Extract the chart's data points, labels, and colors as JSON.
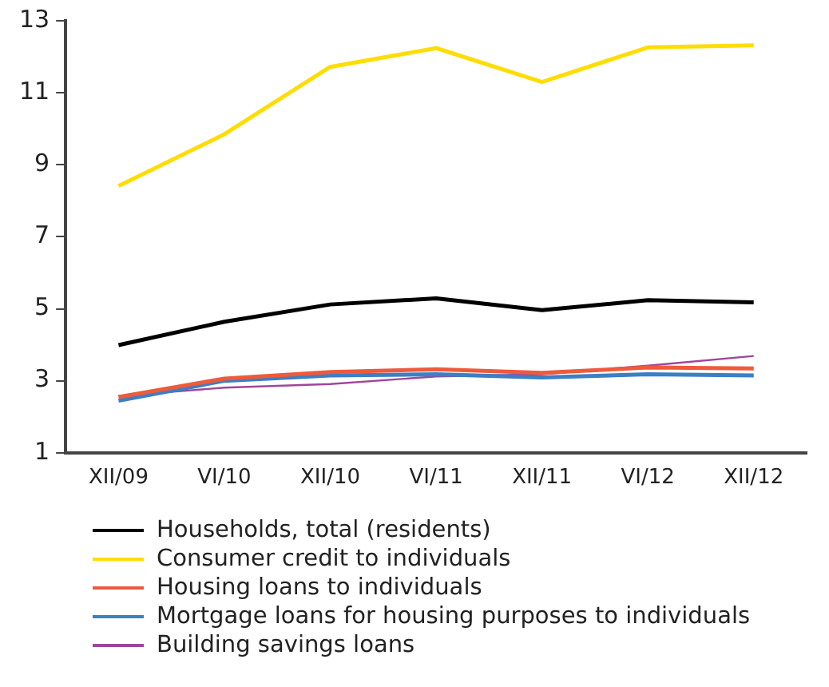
{
  "chart_data": {
    "type": "line",
    "categories": [
      "XII/09",
      "VI/10",
      "XII/10",
      "VI/11",
      "XII/11",
      "VI/12",
      "XII/12"
    ],
    "series": [
      {
        "name": "Households, total (residents)",
        "color": "#000000",
        "values": [
          3.99,
          4.64,
          5.12,
          5.29,
          4.96,
          5.24,
          5.18
        ]
      },
      {
        "name": "Consumer credit to individuals",
        "color": "#ffdd00",
        "values": [
          8.41,
          9.85,
          11.72,
          12.24,
          11.3,
          12.26,
          12.32
        ]
      },
      {
        "name": "Housing loans to individuals",
        "color": "#ee5a3c",
        "values": [
          2.55,
          3.06,
          3.24,
          3.32,
          3.22,
          3.37,
          3.34
        ]
      },
      {
        "name": "Mortgage loans for housing purposes to individuals",
        "color": "#3b7fc4",
        "values": [
          2.45,
          3.0,
          3.15,
          3.18,
          3.09,
          3.18,
          3.15
        ]
      },
      {
        "name": "Building savings loans",
        "color": "#a0459a",
        "values": [
          2.58,
          2.81,
          2.91,
          3.12,
          3.18,
          3.42,
          3.69
        ]
      }
    ],
    "ylim": [
      1,
      13
    ],
    "yticks": [
      1,
      3,
      5,
      7,
      9,
      11,
      13
    ],
    "grid": false,
    "legend": "bottom",
    "marker": "none",
    "line_style": "solid"
  }
}
